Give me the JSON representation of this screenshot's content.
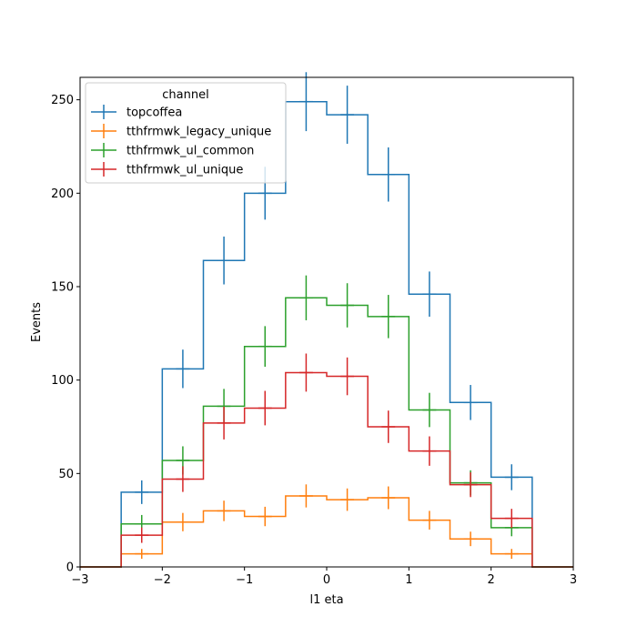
{
  "chart_data": {
    "type": "histogram-step",
    "xlabel": "l1 eta",
    "ylabel": "Events",
    "xlim": [
      -3,
      3
    ],
    "ylim": [
      0,
      262
    ],
    "xticks": [
      -3,
      -2,
      -1,
      0,
      1,
      2,
      3
    ],
    "yticks": [
      0,
      50,
      100,
      150,
      200,
      250
    ],
    "bin_edges": [
      -3,
      -2.5,
      -2,
      -1.5,
      -1,
      -0.5,
      0,
      0.5,
      1,
      1.5,
      2,
      2.5,
      3
    ],
    "legend": {
      "title": "channel",
      "placement": "top-left"
    },
    "series": [
      {
        "name": "topcoffea",
        "color": "#1f77b4",
        "values": [
          0,
          40,
          106,
          164,
          200,
          249,
          242,
          210,
          146,
          88,
          48,
          0
        ]
      },
      {
        "name": "tthfrmwk_legacy_unique",
        "color": "#ff7f0e",
        "values": [
          0,
          7,
          24,
          30,
          27,
          38,
          36,
          37,
          25,
          15,
          7,
          0
        ]
      },
      {
        "name": "tthfrmwk_ul_common",
        "color": "#2ca02c",
        "values": [
          0,
          23,
          57,
          86,
          118,
          144,
          140,
          134,
          84,
          45,
          21,
          0
        ]
      },
      {
        "name": "tthfrmwk_ul_unique",
        "color": "#d62728",
        "values": [
          0,
          17,
          47,
          77,
          85,
          104,
          102,
          75,
          62,
          44,
          26,
          0
        ]
      }
    ]
  }
}
